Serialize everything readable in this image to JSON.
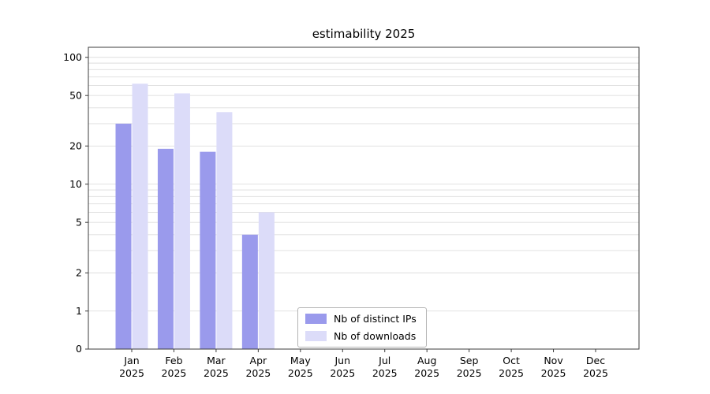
{
  "chart_data": {
    "type": "bar",
    "title": "estimability 2025",
    "categories": [
      "Jan 2025",
      "Feb 2025",
      "Mar 2025",
      "Apr 2025",
      "May 2025",
      "Jun 2025",
      "Jul 2025",
      "Aug 2025",
      "Sep 2025",
      "Oct 2025",
      "Nov 2025",
      "Dec 2025"
    ],
    "series": [
      {
        "name": "Nb of distinct IPs",
        "color": "#9a9aec",
        "values": [
          30,
          19,
          18,
          4,
          0,
          0,
          0,
          0,
          0,
          0,
          0,
          0
        ]
      },
      {
        "name": "Nb of downloads",
        "color": "#dcdcf9",
        "values": [
          62,
          52,
          37,
          6,
          0,
          0,
          0,
          0,
          0,
          0,
          0,
          0
        ]
      }
    ],
    "xlabel": "",
    "ylabel": "",
    "yscale": "symlog",
    "yticks": [
      0,
      1,
      2,
      5,
      10,
      20,
      50,
      100
    ],
    "ylim": [
      0,
      120
    ],
    "grid": true,
    "grid_color": "#dedede",
    "spine_color": "#3c3c3c",
    "legend_position": "lower center"
  }
}
